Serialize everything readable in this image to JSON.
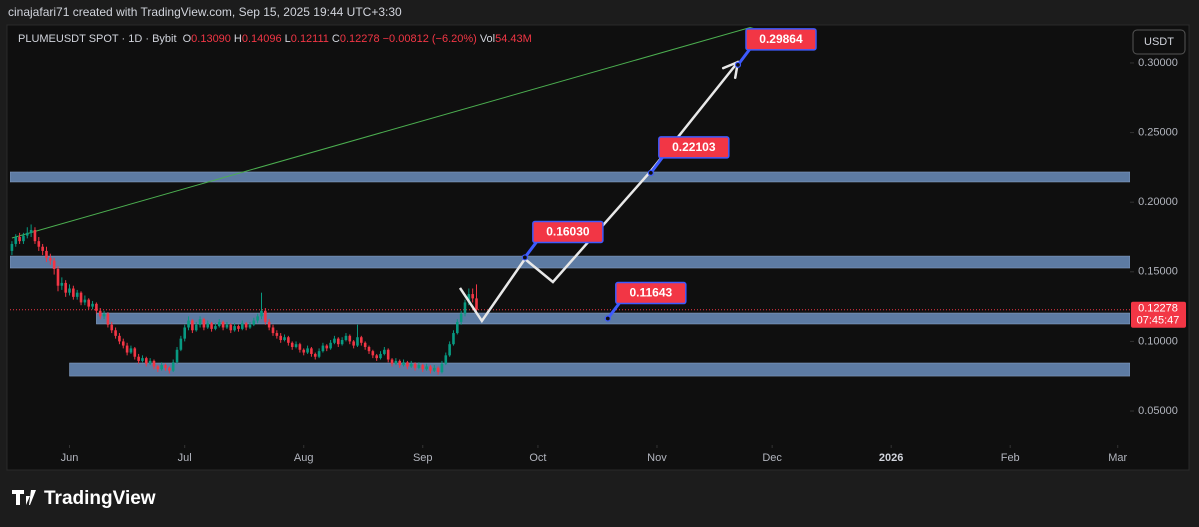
{
  "header": {
    "credit": "cinajafari71 created with TradingView.com, Sep 15, 2025 19:44 UTC+3:30"
  },
  "chart_data": {
    "type": "candlestick",
    "legend": {
      "symbol": "PLUMEUSDT SPOT · 1D · Bybit",
      "items": [
        {
          "label": "O",
          "value": "0.13090"
        },
        {
          "label": "H",
          "value": "0.14096"
        },
        {
          "label": "L",
          "value": "0.12111"
        },
        {
          "label": "C",
          "value": "0.12278"
        }
      ],
      "change": "−0.00812 (−6.20%)",
      "volume_label": "Vol",
      "volume": "54.43M"
    },
    "currency": "USDT",
    "up_color": "#089981",
    "down_color": "#f23645",
    "candles": [
      [
        0.165,
        0.172,
        0.162,
        0.17
      ],
      [
        0.17,
        0.177,
        0.168,
        0.175
      ],
      [
        0.175,
        0.178,
        0.17,
        0.172
      ],
      [
        0.172,
        0.178,
        0.17,
        0.176
      ],
      [
        0.176,
        0.182,
        0.174,
        0.178
      ],
      [
        0.178,
        0.184,
        0.175,
        0.18
      ],
      [
        0.18,
        0.182,
        0.17,
        0.172
      ],
      [
        0.172,
        0.175,
        0.165,
        0.168
      ],
      [
        0.168,
        0.17,
        0.162,
        0.165
      ],
      [
        0.165,
        0.168,
        0.157,
        0.16
      ],
      [
        0.16,
        0.163,
        0.155,
        0.158
      ],
      [
        0.158,
        0.16,
        0.148,
        0.152
      ],
      [
        0.152,
        0.154,
        0.136,
        0.14
      ],
      [
        0.14,
        0.146,
        0.137,
        0.142
      ],
      [
        0.142,
        0.144,
        0.132,
        0.135
      ],
      [
        0.135,
        0.141,
        0.133,
        0.138
      ],
      [
        0.138,
        0.14,
        0.13,
        0.132
      ],
      [
        0.132,
        0.137,
        0.13,
        0.135
      ],
      [
        0.135,
        0.136,
        0.126,
        0.128
      ],
      [
        0.128,
        0.133,
        0.126,
        0.13
      ],
      [
        0.13,
        0.131,
        0.123,
        0.125
      ],
      [
        0.125,
        0.129,
        0.123,
        0.127
      ],
      [
        0.127,
        0.128,
        0.12,
        0.122
      ],
      [
        0.122,
        0.124,
        0.116,
        0.118
      ],
      [
        0.118,
        0.122,
        0.116,
        0.12
      ],
      [
        0.12,
        0.121,
        0.11,
        0.112
      ],
      [
        0.112,
        0.114,
        0.106,
        0.108
      ],
      [
        0.108,
        0.11,
        0.102,
        0.104
      ],
      [
        0.104,
        0.106,
        0.098,
        0.1
      ],
      [
        0.1,
        0.102,
        0.095,
        0.097
      ],
      [
        0.097,
        0.099,
        0.09,
        0.092
      ],
      [
        0.092,
        0.097,
        0.091,
        0.095
      ],
      [
        0.095,
        0.096,
        0.087,
        0.089
      ],
      [
        0.089,
        0.091,
        0.084,
        0.086
      ],
      [
        0.086,
        0.09,
        0.085,
        0.088
      ],
      [
        0.088,
        0.089,
        0.082,
        0.084
      ],
      [
        0.084,
        0.088,
        0.083,
        0.086
      ],
      [
        0.086,
        0.087,
        0.08,
        0.082
      ],
      [
        0.082,
        0.083,
        0.078,
        0.08
      ],
      [
        0.08,
        0.085,
        0.079,
        0.083
      ],
      [
        0.083,
        0.084,
        0.079,
        0.081
      ],
      [
        0.081,
        0.082,
        0.077,
        0.079
      ],
      [
        0.079,
        0.087,
        0.078,
        0.085
      ],
      [
        0.085,
        0.096,
        0.084,
        0.094
      ],
      [
        0.094,
        0.104,
        0.093,
        0.102
      ],
      [
        0.102,
        0.112,
        0.1,
        0.11
      ],
      [
        0.11,
        0.118,
        0.108,
        0.115
      ],
      [
        0.115,
        0.116,
        0.106,
        0.108
      ],
      [
        0.108,
        0.114,
        0.107,
        0.112
      ],
      [
        0.112,
        0.118,
        0.11,
        0.116
      ],
      [
        0.116,
        0.117,
        0.108,
        0.11
      ],
      [
        0.11,
        0.115,
        0.109,
        0.113
      ],
      [
        0.113,
        0.114,
        0.107,
        0.109
      ],
      [
        0.109,
        0.113,
        0.108,
        0.111
      ],
      [
        0.111,
        0.116,
        0.11,
        0.114
      ],
      [
        0.114,
        0.115,
        0.108,
        0.11
      ],
      [
        0.11,
        0.114,
        0.109,
        0.112
      ],
      [
        0.112,
        0.113,
        0.106,
        0.108
      ],
      [
        0.108,
        0.113,
        0.107,
        0.111
      ],
      [
        0.111,
        0.112,
        0.107,
        0.109
      ],
      [
        0.109,
        0.115,
        0.108,
        0.113
      ],
      [
        0.113,
        0.114,
        0.108,
        0.11
      ],
      [
        0.11,
        0.114,
        0.109,
        0.112
      ],
      [
        0.112,
        0.117,
        0.111,
        0.115
      ],
      [
        0.115,
        0.12,
        0.113,
        0.118
      ],
      [
        0.118,
        0.135,
        0.116,
        0.122
      ],
      [
        0.122,
        0.124,
        0.112,
        0.114
      ],
      [
        0.114,
        0.116,
        0.108,
        0.11
      ],
      [
        0.11,
        0.112,
        0.104,
        0.106
      ],
      [
        0.106,
        0.108,
        0.102,
        0.104
      ],
      [
        0.104,
        0.106,
        0.099,
        0.101
      ],
      [
        0.101,
        0.105,
        0.1,
        0.103
      ],
      [
        0.103,
        0.104,
        0.097,
        0.099
      ],
      [
        0.099,
        0.1,
        0.094,
        0.096
      ],
      [
        0.096,
        0.1,
        0.095,
        0.098
      ],
      [
        0.098,
        0.099,
        0.092,
        0.094
      ],
      [
        0.094,
        0.095,
        0.09,
        0.092
      ],
      [
        0.092,
        0.097,
        0.091,
        0.095
      ],
      [
        0.095,
        0.096,
        0.089,
        0.091
      ],
      [
        0.091,
        0.092,
        0.087,
        0.089
      ],
      [
        0.089,
        0.095,
        0.088,
        0.093
      ],
      [
        0.093,
        0.099,
        0.092,
        0.097
      ],
      [
        0.097,
        0.098,
        0.093,
        0.095
      ],
      [
        0.095,
        0.101,
        0.094,
        0.099
      ],
      [
        0.099,
        0.104,
        0.098,
        0.102
      ],
      [
        0.102,
        0.103,
        0.096,
        0.098
      ],
      [
        0.098,
        0.103,
        0.097,
        0.101
      ],
      [
        0.101,
        0.106,
        0.1,
        0.104
      ],
      [
        0.104,
        0.105,
        0.098,
        0.1
      ],
      [
        0.1,
        0.101,
        0.095,
        0.097
      ],
      [
        0.097,
        0.112,
        0.096,
        0.103
      ],
      [
        0.103,
        0.104,
        0.097,
        0.099
      ],
      [
        0.099,
        0.1,
        0.094,
        0.096
      ],
      [
        0.096,
        0.097,
        0.091,
        0.093
      ],
      [
        0.093,
        0.094,
        0.088,
        0.09
      ],
      [
        0.09,
        0.091,
        0.086,
        0.088
      ],
      [
        0.088,
        0.093,
        0.087,
        0.091
      ],
      [
        0.091,
        0.096,
        0.09,
        0.094
      ],
      [
        0.094,
        0.095,
        0.085,
        0.087
      ],
      [
        0.087,
        0.088,
        0.082,
        0.084
      ],
      [
        0.084,
        0.088,
        0.083,
        0.086
      ],
      [
        0.086,
        0.087,
        0.081,
        0.083
      ],
      [
        0.083,
        0.087,
        0.082,
        0.085
      ],
      [
        0.085,
        0.086,
        0.08,
        0.082
      ],
      [
        0.082,
        0.086,
        0.081,
        0.084
      ],
      [
        0.084,
        0.085,
        0.079,
        0.081
      ],
      [
        0.081,
        0.085,
        0.08,
        0.083
      ],
      [
        0.083,
        0.084,
        0.078,
        0.08
      ],
      [
        0.08,
        0.084,
        0.079,
        0.082
      ],
      [
        0.082,
        0.083,
        0.077,
        0.079
      ],
      [
        0.079,
        0.083,
        0.078,
        0.081
      ],
      [
        0.081,
        0.082,
        0.076,
        0.078
      ],
      [
        0.078,
        0.086,
        0.077,
        0.084
      ],
      [
        0.084,
        0.092,
        0.083,
        0.09
      ],
      [
        0.09,
        0.1,
        0.089,
        0.098
      ],
      [
        0.098,
        0.108,
        0.097,
        0.106
      ],
      [
        0.106,
        0.116,
        0.105,
        0.114
      ],
      [
        0.114,
        0.122,
        0.112,
        0.12
      ],
      [
        0.12,
        0.13,
        0.118,
        0.128
      ],
      [
        0.128,
        0.138,
        0.126,
        0.134
      ],
      [
        0.134,
        0.138,
        0.128,
        0.1309
      ],
      [
        0.1309,
        0.14096,
        0.12111,
        0.12278
      ]
    ],
    "xlim": [
      -0.5,
      291.2
    ],
    "xticks": [
      {
        "value": 15,
        "label": "Jun"
      },
      {
        "value": 45,
        "label": "Jul"
      },
      {
        "value": 76,
        "label": "Aug"
      },
      {
        "value": 107,
        "label": "Sep"
      },
      {
        "value": 137,
        "label": "Oct"
      },
      {
        "value": 168,
        "label": "Nov"
      },
      {
        "value": 198,
        "label": "Dec"
      },
      {
        "value": 229,
        "label": "2026"
      },
      {
        "value": 260,
        "label": "Feb"
      },
      {
        "value": 288,
        "label": "Mar"
      }
    ],
    "ylim": [
      0.0256,
      0.3251
    ],
    "yticks": [
      {
        "value": 0.05,
        "label": "0.05000"
      },
      {
        "value": 0.1,
        "label": "0.10000"
      },
      {
        "value": 0.15,
        "label": "0.15000"
      },
      {
        "value": 0.2,
        "label": "0.20000"
      },
      {
        "value": 0.25,
        "label": "0.25000"
      },
      {
        "value": 0.3,
        "label": "0.30000"
      }
    ],
    "zones": [
      {
        "low": 0.2145,
        "high": 0.2217,
        "from": -0.5
      },
      {
        "low": 0.1527,
        "high": 0.1613,
        "from": -0.5
      },
      {
        "low": 0.1125,
        "high": 0.1204,
        "from": 22
      },
      {
        "low": 0.0751,
        "high": 0.0845,
        "from": 15
      }
    ],
    "zone_color": "#5d7ba3",
    "trendline": {
      "from": [
        0,
        0.1743
      ],
      "to": [
        197.4,
        0.3295
      ],
      "color": "#4caf50"
    },
    "path": [
      [
        116.7,
        0.1384
      ],
      [
        122.4,
        0.1147
      ],
      [
        133.6,
        0.1592
      ],
      [
        140.9,
        0.1427
      ],
      [
        166.2,
        0.2217
      ],
      [
        189.1,
        0.3007
      ]
    ],
    "annotations": [
      {
        "x": 189.1,
        "value": 0.29864,
        "label": "0.29864"
      },
      {
        "x": 166.4,
        "value": 0.22103,
        "label": "0.22103"
      },
      {
        "x": 133.6,
        "value": 0.1603,
        "label": "0.16030"
      },
      {
        "x": 155.2,
        "value": 0.11643,
        "label": "0.11643"
      }
    ],
    "last_price": {
      "value": 0.12278,
      "label": "0.12278",
      "countdown": "07:45:47"
    }
  },
  "footer": {
    "brand": "TradingView"
  }
}
